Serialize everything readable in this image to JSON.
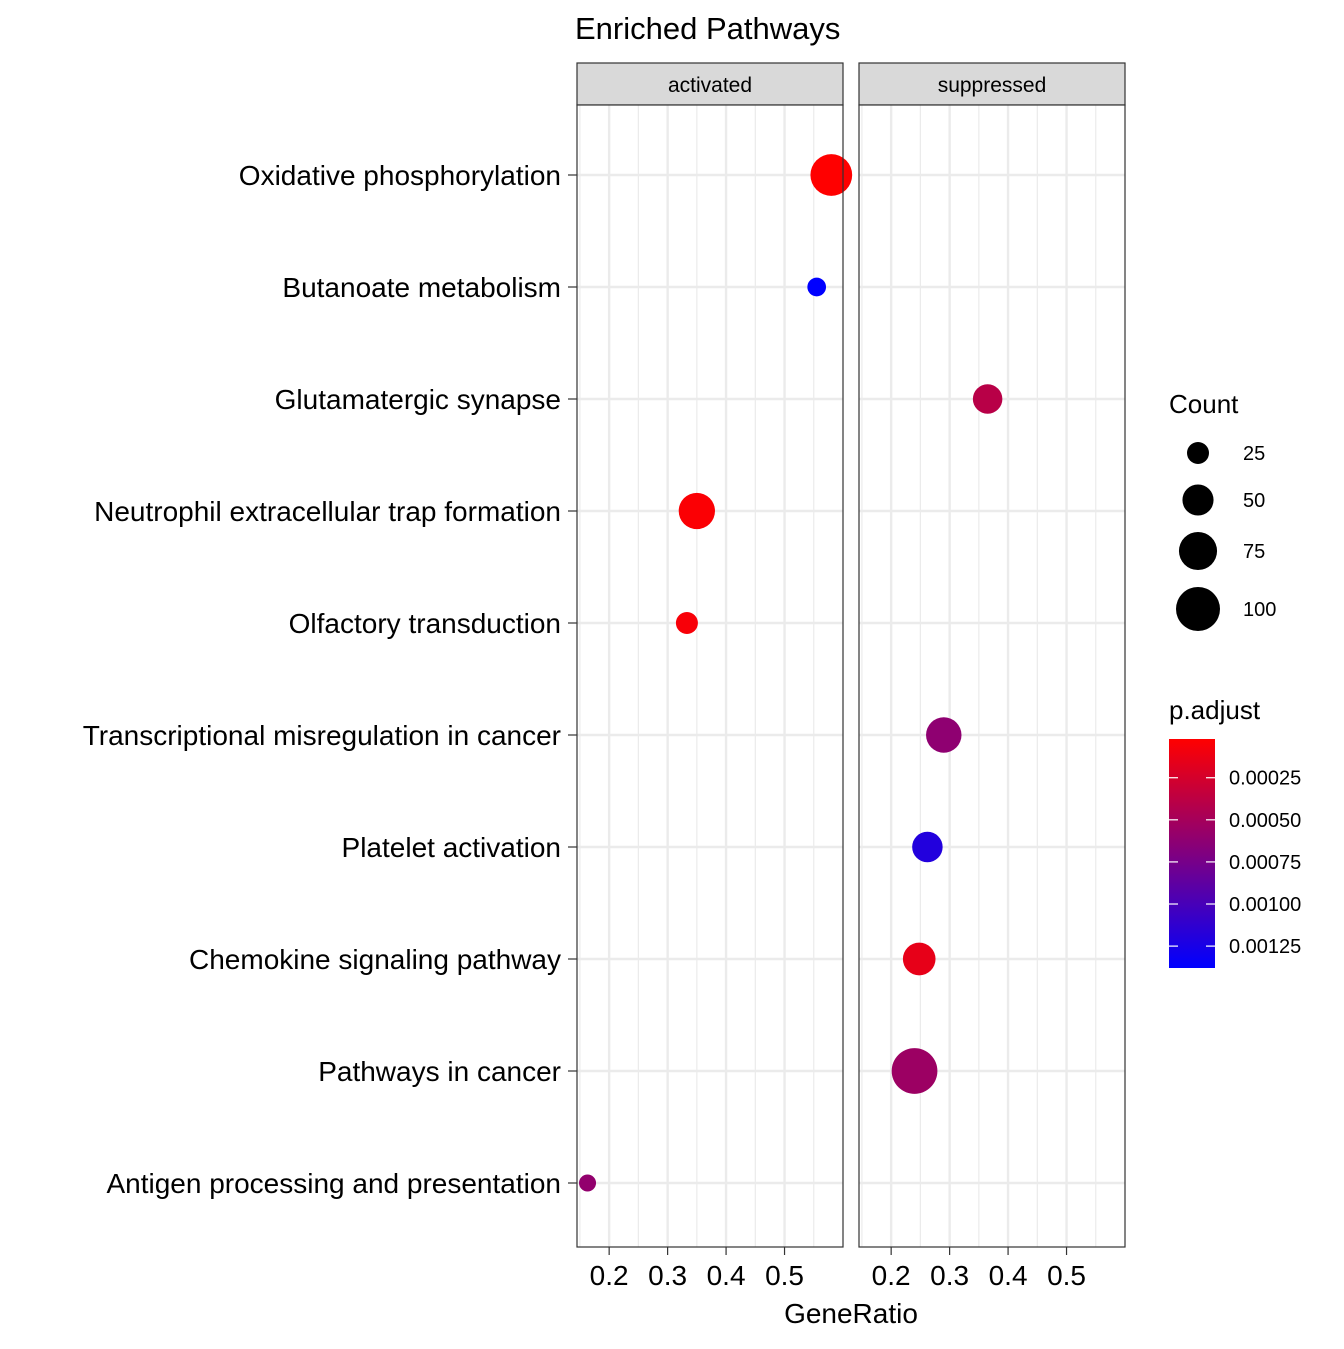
{
  "chart_data": {
    "type": "scatter",
    "title": "Enriched Pathways",
    "xlabel": "GeneRatio",
    "ylabel": "",
    "xlim": [
      0.145,
      0.6
    ],
    "x_ticks": [
      0.2,
      0.3,
      0.4,
      0.5
    ],
    "x_tick_labels": [
      "0.2",
      "0.3",
      "0.4",
      "0.5"
    ],
    "grid": true,
    "panels": [
      "activated",
      "suppressed"
    ],
    "categories": [
      "Oxidative phosphorylation",
      "Butanoate metabolism",
      "Glutamatergic synapse",
      "Neutrophil extracellular trap formation",
      "Olfactory transduction",
      "Transcriptional misregulation in cancer",
      "Platelet activation",
      "Chemokine signaling pathway",
      "Pathways in cancer",
      "Antigen processing and presentation"
    ],
    "points": [
      {
        "panel": "activated",
        "category": "Oxidative phosphorylation",
        "x": 0.58,
        "count": 90,
        "p_adjust": 2e-05
      },
      {
        "panel": "activated",
        "category": "Butanoate metabolism",
        "x": 0.555,
        "count": 18,
        "p_adjust": 0.00138
      },
      {
        "panel": "activated",
        "category": "Neutrophil extracellular trap formation",
        "x": 0.35,
        "count": 68,
        "p_adjust": 4e-05
      },
      {
        "panel": "activated",
        "category": "Olfactory transduction",
        "x": 0.333,
        "count": 25,
        "p_adjust": 6e-05
      },
      {
        "panel": "activated",
        "category": "Antigen processing and presentation",
        "x": 0.163,
        "count": 15,
        "p_adjust": 0.0006
      },
      {
        "panel": "suppressed",
        "category": "Glutamatergic synapse",
        "x": 0.365,
        "count": 45,
        "p_adjust": 0.0004
      },
      {
        "panel": "suppressed",
        "category": "Transcriptional misregulation in cancer",
        "x": 0.29,
        "count": 65,
        "p_adjust": 0.00062
      },
      {
        "panel": "suppressed",
        "category": "Platelet activation",
        "x": 0.262,
        "count": 48,
        "p_adjust": 0.0012
      },
      {
        "panel": "suppressed",
        "category": "Chemokine signaling pathway",
        "x": 0.248,
        "count": 55,
        "p_adjust": 0.00015
      },
      {
        "panel": "suppressed",
        "category": "Pathways in cancer",
        "x": 0.24,
        "count": 108,
        "p_adjust": 0.00055
      }
    ],
    "legend_size": {
      "title": "Count",
      "values": [
        25,
        50,
        75,
        100
      ],
      "labels": [
        "25",
        "50",
        "75",
        "100"
      ]
    },
    "legend_color": {
      "title": "p.adjust",
      "min": 2e-05,
      "max": 0.00138,
      "ticks": [
        0.00025,
        0.0005,
        0.00075,
        0.001,
        0.00125
      ],
      "tick_labels": [
        "0.00025",
        "0.00050",
        "0.00075",
        "0.00100",
        "0.00125"
      ],
      "low_color": "#ff0000",
      "high_color": "#0000ff"
    },
    "colors": {
      "strip_fill": "#d9d9d9",
      "grid": "#ebebeb",
      "panel_border": "#333333",
      "size_legend_dot": "#000000"
    },
    "legend_placement": "right"
  }
}
